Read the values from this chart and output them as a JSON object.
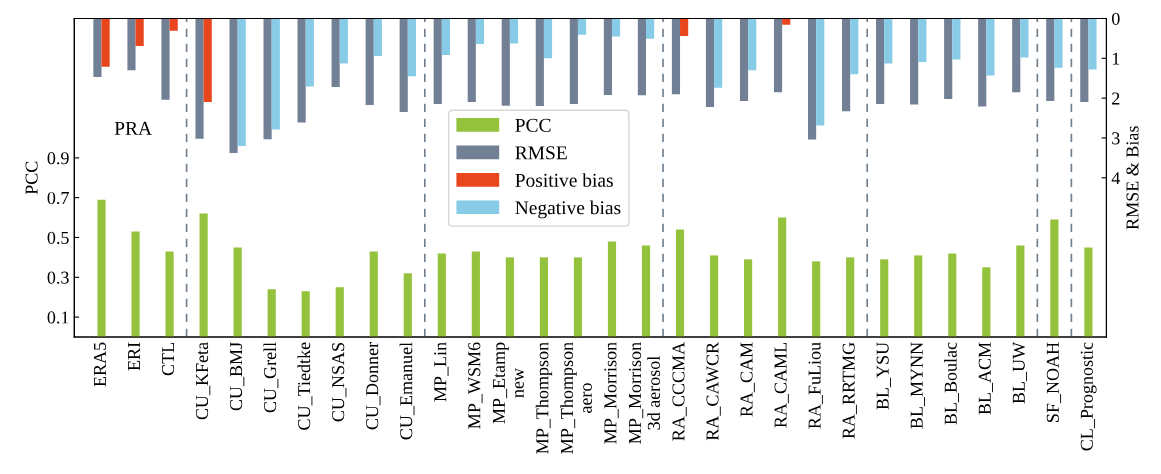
{
  "chart_data": {
    "type": "bar",
    "ylabel": "PCC",
    "y2label": "RMSE & Bias",
    "categories": [
      "ERA5",
      "ERI",
      "CTL",
      "CU_KFeta",
      "CU_BMJ",
      "CU_Grell",
      "CU_Tiedtke",
      "CU_NSAS",
      "CU_Donner",
      "CU_Emanuel",
      "MP_Lin",
      "MP_WSM6",
      "MP_Etamp\nnew",
      "MP_Thompson",
      "MP_Thompson\naero",
      "MP_Morrison",
      "MP_Morrison\n3d aerosol",
      "RA_CCCMA",
      "RA_CAWCR",
      "RA_CAM",
      "RA_CAML",
      "RA_FuLiou",
      "RA_RRTMG",
      "BL_YSU",
      "BL_MYNN",
      "BL_Boulac",
      "BL_ACM",
      "BL_UW",
      "SF_NOAH",
      "CL_Prognostic"
    ],
    "series": [
      {
        "name": "PCC",
        "color": "#95c23d",
        "values": [
          0.69,
          0.53,
          0.43,
          0.62,
          0.45,
          0.24,
          0.23,
          0.25,
          0.43,
          0.32,
          0.42,
          0.43,
          0.4,
          0.4,
          0.4,
          0.48,
          0.46,
          0.54,
          0.41,
          0.39,
          0.6,
          0.38,
          0.4,
          0.39,
          0.41,
          0.42,
          0.35,
          0.46,
          0.59,
          0.45
        ]
      },
      {
        "name": "RMSE",
        "color": "#728096",
        "axis": "y2",
        "values": [
          1.47,
          1.3,
          2.04,
          3.02,
          3.38,
          3.03,
          2.61,
          1.72,
          2.17,
          2.35,
          2.15,
          2.1,
          2.19,
          2.2,
          2.15,
          1.92,
          1.93,
          1.9,
          2.22,
          2.07,
          1.85,
          3.04,
          2.33,
          2.15,
          2.16,
          2.02,
          2.21,
          1.85,
          2.07,
          2.1
        ]
      },
      {
        "name": "Positive bias",
        "color": "#e8461c",
        "axis": "y2",
        "values": [
          1.21,
          0.69,
          0.31,
          2.1,
          null,
          null,
          null,
          null,
          null,
          null,
          null,
          null,
          null,
          null,
          null,
          null,
          null,
          0.44,
          null,
          null,
          0.16,
          null,
          null,
          null,
          null,
          null,
          null,
          null,
          null,
          null
        ]
      },
      {
        "name": "Negative bias",
        "color": "#87cbe6",
        "axis": "y2",
        "values": [
          null,
          null,
          null,
          null,
          3.2,
          2.79,
          1.71,
          1.13,
          0.94,
          1.45,
          0.92,
          0.64,
          0.63,
          1.0,
          0.41,
          0.45,
          0.51,
          null,
          1.74,
          1.3,
          null,
          2.69,
          1.4,
          1.13,
          1.09,
          1.03,
          1.43,
          0.98,
          1.24,
          1.28
        ]
      }
    ],
    "ylim": [
      0,
      1.6
    ],
    "yticks": [
      0.1,
      0.3,
      0.5,
      0.7,
      0.9
    ],
    "y2lim": [
      8,
      0
    ],
    "y2ticks": [
      0,
      1,
      2,
      3,
      4
    ],
    "annotations": [
      "PRA"
    ],
    "legend": "center"
  }
}
